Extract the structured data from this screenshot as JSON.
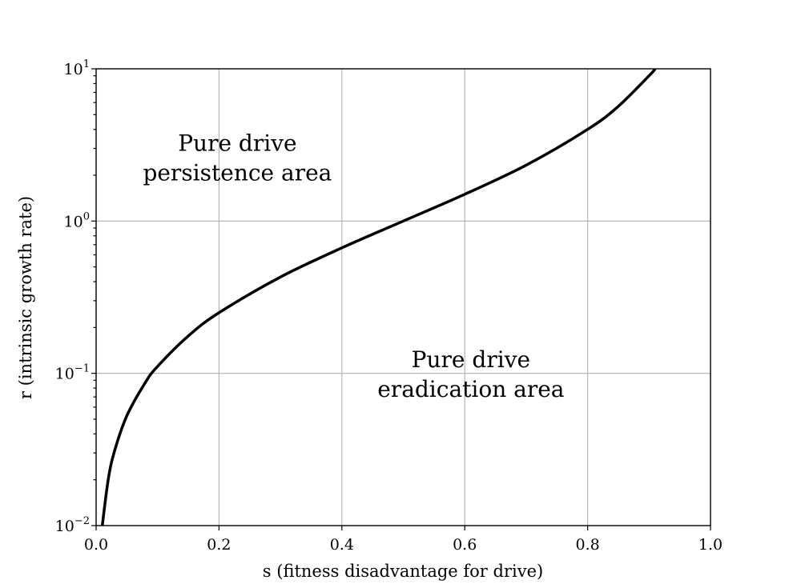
{
  "chart_data": {
    "type": "line",
    "title": "",
    "xlabel": "s (fitness disadvantage for drive)",
    "ylabel": "r (intrinsic growth rate)",
    "xlim": [
      0.0,
      1.0
    ],
    "ylim": [
      0.01,
      10
    ],
    "yscale": "log",
    "grid": true,
    "x_ticks": [
      {
        "value": 0.0,
        "label": "0.0"
      },
      {
        "value": 0.2,
        "label": "0.2"
      },
      {
        "value": 0.4,
        "label": "0.4"
      },
      {
        "value": 0.6,
        "label": "0.6"
      },
      {
        "value": 0.8,
        "label": "0.8"
      },
      {
        "value": 1.0,
        "label": "1.0"
      }
    ],
    "y_ticks": [
      {
        "value": 0.01,
        "base": "10",
        "exp": "−2"
      },
      {
        "value": 0.1,
        "base": "10",
        "exp": "−1"
      },
      {
        "value": 1,
        "base": "10",
        "exp": "0"
      },
      {
        "value": 10,
        "base": "10",
        "exp": "1"
      }
    ],
    "series": [
      {
        "color": "#000000",
        "x": [
          0.01,
          0.02,
          0.03,
          0.05,
          0.08,
          0.1,
          0.15,
          0.2,
          0.3,
          0.4,
          0.5,
          0.6,
          0.7,
          0.8,
          0.85,
          0.9,
          0.91
        ],
        "y": [
          0.01,
          0.0204,
          0.0309,
          0.0526,
          0.087,
          0.111,
          0.176,
          0.25,
          0.429,
          0.667,
          1.0,
          1.5,
          2.33,
          4.0,
          5.67,
          9.0,
          10.0
        ]
      }
    ],
    "annotations": [
      {
        "lines": [
          "Pure drive",
          "persistence area"
        ],
        "x": 0.23,
        "y": 2.9
      },
      {
        "lines": [
          "Pure drive",
          "eradication area"
        ],
        "x": 0.61,
        "y": 0.11
      }
    ]
  }
}
